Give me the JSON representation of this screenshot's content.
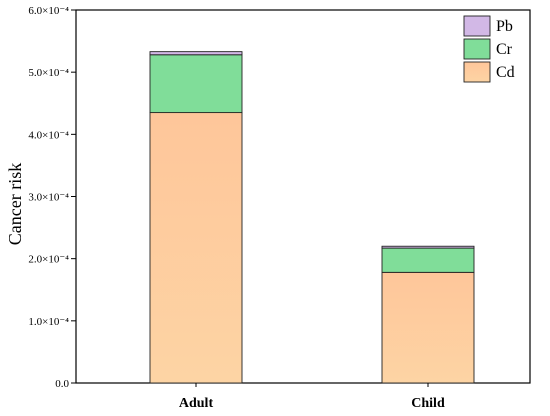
{
  "chart_data": {
    "type": "bar",
    "stacked": true,
    "categories": [
      "Adult",
      "Child"
    ],
    "series": [
      {
        "name": "Cd",
        "values": [
          0.000435,
          0.000178
        ],
        "color": "#fec99a"
      },
      {
        "name": "Cr",
        "values": [
          9.3e-05,
          3.9e-05
        ],
        "color": "#80dd99"
      },
      {
        "name": "Pb",
        "values": [
          5e-06,
          3e-06
        ],
        "color": "#d2b8e6"
      }
    ],
    "ylabel": "Cancer risk",
    "xlabel": "",
    "ylim": [
      0,
      0.0006
    ],
    "yticks": [
      {
        "value": 0.0,
        "label": "0.0"
      },
      {
        "value": 0.0001,
        "label": "1.0×10⁻⁴"
      },
      {
        "value": 0.0002,
        "label": "2.0×10⁻⁴"
      },
      {
        "value": 0.0003,
        "label": "3.0×10⁻⁴"
      },
      {
        "value": 0.0004,
        "label": "4.0×10⁻⁴"
      },
      {
        "value": 0.0005,
        "label": "5.0×10⁻⁴"
      },
      {
        "value": 0.0006,
        "label": "6.0×10⁻⁴"
      }
    ],
    "legend": {
      "position": "top-right",
      "order": [
        "Pb",
        "Cr",
        "Cd"
      ]
    },
    "grid": false
  }
}
